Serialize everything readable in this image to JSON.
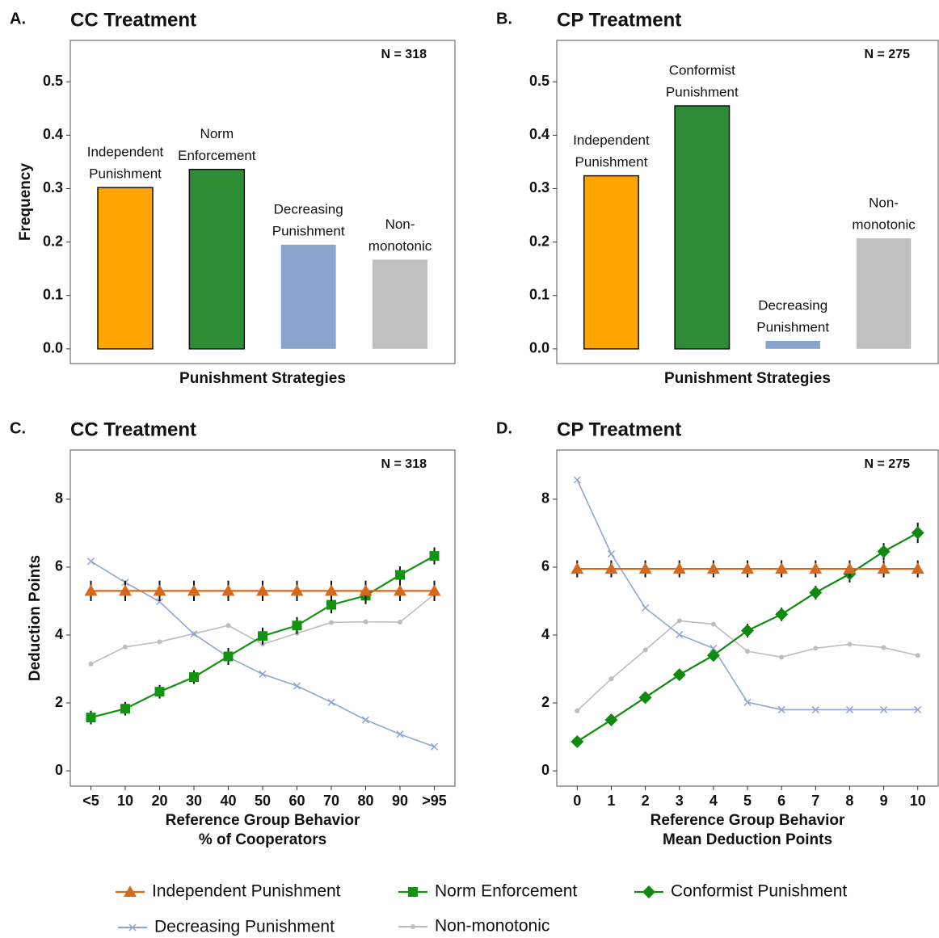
{
  "chart_data": [
    {
      "type": "bar",
      "panel": "A.",
      "title": "CC Treatment",
      "annotation": "N = 318",
      "ylabel": "Frequency",
      "xlabel": "Punishment Strategies",
      "categories": [
        [
          "Independent",
          "Punishment"
        ],
        [
          "Norm",
          "Enforcement"
        ],
        [
          "Decreasing",
          "Punishment"
        ],
        [
          "Non-",
          "monotonic"
        ]
      ],
      "values": [
        0.302,
        0.336,
        0.195,
        0.167
      ],
      "colors": [
        "#ffa500",
        "#2e8b36",
        "#8aa5cc",
        "#c0c0c0"
      ],
      "outlined": [
        true,
        true,
        false,
        false
      ],
      "ylim": [
        -0.0275,
        0.5775
      ],
      "yticks": [
        {
          "value": 0,
          "label": "0.0"
        },
        0.1,
        0.2,
        0.3,
        0.4,
        0.5
      ],
      "grid": false
    },
    {
      "type": "bar",
      "panel": "B.",
      "title": "CP Treatment",
      "annotation": "N = 275",
      "xlabel": "Punishment Strategies",
      "categories": [
        [
          "Independent",
          "Punishment"
        ],
        [
          "Conformist",
          "Punishment"
        ],
        [
          "Decreasing",
          "Punishment"
        ],
        [
          "Non-",
          "monotonic"
        ]
      ],
      "values": [
        0.324,
        0.455,
        0.015,
        0.207
      ],
      "colors": [
        "#ffa500",
        "#2e8b36",
        "#8aa5cc",
        "#c0c0c0"
      ],
      "outlined": [
        true,
        true,
        false,
        false
      ],
      "ylim": [
        -0.0275,
        0.5775
      ],
      "yticks": [
        {
          "value": 0,
          "label": "0.0"
        },
        0.1,
        0.2,
        0.3,
        0.4,
        0.5
      ],
      "grid": false
    },
    {
      "type": "line",
      "panel": "C.",
      "title": "CC Treatment",
      "annotation": "N = 318",
      "ylabel": "Deduction Points",
      "xlabel": [
        "Reference Group Behavior",
        "% of Cooperators"
      ],
      "categories": [
        "<5",
        "10",
        "20",
        "30",
        "40",
        "50",
        "60",
        "70",
        "80",
        "90",
        ">95"
      ],
      "series": [
        {
          "name": "Independent Punishment",
          "color": "#d4691e",
          "marker": "triangle",
          "values": [
            5.3,
            5.3,
            5.3,
            5.3,
            5.3,
            5.3,
            5.3,
            5.3,
            5.3,
            5.3,
            5.3
          ],
          "errors": [
            0.3,
            0.3,
            0.3,
            0.3,
            0.3,
            0.3,
            0.3,
            0.3,
            0.3,
            0.3,
            0.3
          ]
        },
        {
          "name": "Norm Enforcement",
          "color": "#129412",
          "marker": "square",
          "values": [
            1.57,
            1.83,
            2.33,
            2.76,
            3.37,
            3.97,
            4.28,
            4.89,
            5.16,
            5.77,
            6.33
          ],
          "errors": [
            0.2,
            0.2,
            0.2,
            0.2,
            0.25,
            0.25,
            0.25,
            0.25,
            0.25,
            0.25,
            0.25
          ]
        },
        {
          "name": "Decreasing Punishment",
          "color": "#8fa7d1",
          "marker": "x",
          "values": [
            6.17,
            5.55,
            4.98,
            4.03,
            3.35,
            2.85,
            2.5,
            2.02,
            1.5,
            1.08,
            0.71
          ]
        },
        {
          "name": "Non-monotonic",
          "color": "#bdbdbd",
          "marker": "dot",
          "values": [
            3.15,
            3.65,
            3.8,
            4.04,
            4.28,
            3.73,
            4.05,
            4.37,
            4.39,
            4.38,
            5.2
          ]
        }
      ],
      "ylim": [
        -0.45,
        9.45
      ],
      "yticks": [
        0,
        2,
        4,
        6,
        8
      ],
      "grid": false,
      "legend": "bottom"
    },
    {
      "type": "line",
      "panel": "D.",
      "title": "CP Treatment",
      "annotation": "N = 275",
      "xlabel": [
        "Reference Group Behavior",
        "Mean Deduction Points"
      ],
      "x": [
        0,
        1,
        2,
        3,
        4,
        5,
        6,
        7,
        8,
        9,
        10
      ],
      "xlim": [
        -0.6,
        10.6
      ],
      "xticks": [
        0,
        1,
        2,
        3,
        4,
        5,
        6,
        7,
        8,
        9,
        10
      ],
      "series": [
        {
          "name": "Independent Punishment",
          "color": "#d4691e",
          "marker": "triangle",
          "values": [
            5.95,
            5.95,
            5.95,
            5.95,
            5.95,
            5.95,
            5.95,
            5.95,
            5.95,
            5.95,
            5.95
          ],
          "errors": [
            0.25,
            0.25,
            0.25,
            0.25,
            0.25,
            0.25,
            0.25,
            0.25,
            0.25,
            0.25,
            0.25
          ]
        },
        {
          "name": "Conformist Punishment",
          "color": "#0f8a0f",
          "marker": "diamond",
          "values": [
            0.86,
            1.5,
            2.16,
            2.83,
            3.4,
            4.13,
            4.61,
            5.25,
            5.8,
            6.46,
            7.01
          ],
          "errors": [
            0.15,
            0.15,
            0.15,
            0.15,
            0.15,
            0.2,
            0.2,
            0.2,
            0.25,
            0.25,
            0.3
          ]
        },
        {
          "name": "Decreasing Punishment",
          "color": "#8fa7d1",
          "marker": "x",
          "values": [
            8.57,
            6.39,
            4.8,
            4.01,
            3.61,
            2.02,
            1.8,
            1.8,
            1.8,
            1.8,
            1.8
          ]
        },
        {
          "name": "Non-monotonic",
          "color": "#bdbdbd",
          "marker": "dot",
          "values": [
            1.77,
            2.71,
            3.56,
            4.42,
            4.32,
            3.52,
            3.35,
            3.61,
            3.73,
            3.63,
            3.4
          ]
        }
      ],
      "ylim": [
        -0.45,
        9.45
      ],
      "yticks": [
        0,
        2,
        4,
        6,
        8
      ],
      "grid": false,
      "legend": "bottom"
    }
  ]
}
